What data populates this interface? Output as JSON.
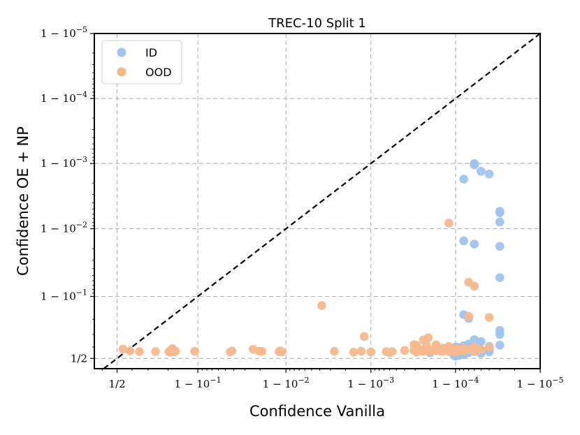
{
  "chart_data": {
    "type": "scatter",
    "title": "TREC-10 Split 1",
    "xlabel": "Confidence Vanilla",
    "ylabel": "Confidence OE + NP",
    "axis_scale": "logit (confidence near 1)",
    "xlim": [
      0.35,
      0.99999
    ],
    "ylim": [
      0.41,
      0.99999
    ],
    "x_ticks": [
      {
        "value": 0.5,
        "label": "1/2"
      },
      {
        "value": 0.9,
        "label": "1 − 10^−1"
      },
      {
        "value": 0.99,
        "label": "1 − 10^−2"
      },
      {
        "value": 0.999,
        "label": "1 − 10^−3"
      },
      {
        "value": 0.9999,
        "label": "1 − 10^−4"
      },
      {
        "value": 0.99999,
        "label": "1 − 10^−5"
      }
    ],
    "y_ticks": [
      {
        "value": 0.5,
        "label": "1/2"
      },
      {
        "value": 0.9,
        "label": "1 − 10^−1"
      },
      {
        "value": 0.99,
        "label": "1 − 10^−2"
      },
      {
        "value": 0.999,
        "label": "1 − 10^−3"
      },
      {
        "value": 0.9999,
        "label": "1 − 10^−4"
      },
      {
        "value": 0.99999,
        "label": "1 − 10^−5"
      }
    ],
    "grid": true,
    "diagonal_reference": "y = x (black dashed)",
    "legend_position": "top-left",
    "series": [
      {
        "name": "ID",
        "color": "#9fc3ee",
        "points": [
          [
            0.99994,
            0.999
          ],
          [
            0.99994,
            0.99895
          ],
          [
            0.99995,
            0.99868
          ],
          [
            0.99996,
            0.99855
          ],
          [
            0.99992,
            0.99826
          ],
          [
            0.99997,
            0.9946
          ],
          [
            0.99997,
            0.9943
          ],
          [
            0.99997,
            0.9921
          ],
          [
            0.99992,
            0.9847
          ],
          [
            0.99994,
            0.9829
          ],
          [
            0.99997,
            0.9815
          ],
          [
            0.99997,
            0.9458
          ],
          [
            0.99992,
            0.825
          ],
          [
            0.99993,
            0.805
          ],
          [
            0.99997,
            0.73
          ],
          [
            0.99997,
            0.7
          ],
          [
            0.99994,
            0.66
          ],
          [
            0.99995,
            0.645
          ],
          [
            0.99993,
            0.625
          ],
          [
            0.99992,
            0.61
          ],
          [
            0.99996,
            0.605
          ],
          [
            0.99997,
            0.615
          ],
          [
            0.99991,
            0.595
          ],
          [
            0.9999,
            0.6
          ],
          [
            0.99994,
            0.6
          ],
          [
            0.99989,
            0.59
          ],
          [
            0.99988,
            0.592
          ],
          [
            0.99992,
            0.59
          ],
          [
            0.9999,
            0.585
          ],
          [
            0.99993,
            0.587
          ],
          [
            0.99989,
            0.58
          ],
          [
            0.99991,
            0.582
          ],
          [
            0.99994,
            0.583
          ],
          [
            0.99993,
            0.58
          ],
          [
            0.99996,
            0.582
          ],
          [
            0.99991,
            0.57
          ],
          [
            0.99989,
            0.575
          ],
          [
            0.99994,
            0.572
          ],
          [
            0.99987,
            0.57
          ],
          [
            0.99992,
            0.572
          ],
          [
            0.9999,
            0.57
          ],
          [
            0.99995,
            0.57
          ],
          [
            0.99992,
            0.565
          ],
          [
            0.99988,
            0.566
          ],
          [
            0.99993,
            0.565
          ],
          [
            0.99991,
            0.56
          ],
          [
            0.99989,
            0.562
          ],
          [
            0.99994,
            0.561
          ],
          [
            0.99992,
            0.555
          ],
          [
            0.9999,
            0.555
          ],
          [
            0.99996,
            0.557
          ],
          [
            0.9999,
            0.55
          ],
          [
            0.99993,
            0.551
          ],
          [
            0.9998,
            0.55
          ],
          [
            0.9999,
            0.545
          ],
          [
            0.99995,
            0.545
          ],
          [
            0.9999,
            0.54
          ],
          [
            0.99992,
            0.54
          ],
          [
            0.999895,
            0.535
          ],
          [
            0.99992,
            0.535
          ],
          [
            0.9999,
            0.53
          ],
          [
            0.99991,
            0.528
          ],
          [
            0.9999,
            0.525
          ],
          [
            0.9999,
            0.52
          ]
        ]
      },
      {
        "name": "OOD",
        "color": "#f6b98e",
        "points": [
          [
            0.99988,
            0.9918
          ],
          [
            0.99993,
            0.937
          ],
          [
            0.99994,
            0.928
          ],
          [
            0.99993,
            0.817
          ],
          [
            0.99996,
            0.81
          ],
          [
            0.99979,
            0.675
          ],
          [
            0.99976,
            0.658
          ],
          [
            0.99969,
            0.62
          ],
          [
            0.99971,
            0.613
          ],
          [
            0.99983,
            0.618
          ],
          [
            0.99978,
            0.612
          ],
          [
            0.99983,
            0.605
          ],
          [
            0.99988,
            0.605
          ],
          [
            0.99992,
            0.59
          ],
          [
            0.99994,
            0.6
          ],
          [
            0.99996,
            0.595
          ],
          [
            0.99986,
            0.59
          ],
          [
            0.9999,
            0.585
          ],
          [
            0.99993,
            0.583
          ],
          [
            0.99984,
            0.584
          ],
          [
            0.99987,
            0.58
          ],
          [
            0.99991,
            0.578
          ],
          [
            0.99995,
            0.578
          ],
          [
            0.9998,
            0.575
          ],
          [
            0.99989,
            0.574
          ],
          [
            0.99994,
            0.574
          ],
          [
            0.99983,
            0.57
          ],
          [
            0.99978,
            0.565
          ],
          [
            0.99986,
            0.565
          ],
          [
            0.99992,
            0.565
          ],
          [
            0.99975,
            0.562
          ],
          [
            0.99994,
            0.561
          ],
          [
            0.99988,
            0.56
          ],
          [
            0.99969,
            0.57
          ],
          [
            0.99974,
            0.575
          ],
          [
            0.99976,
            0.565
          ],
          [
            0.9998,
            0.563
          ],
          [
            0.99978,
            0.57
          ],
          [
            0.99983,
            0.567
          ],
          [
            0.99991,
            0.566
          ],
          [
            0.99985,
            0.562
          ],
          [
            0.99988,
            0.563
          ],
          [
            0.99971,
            0.555
          ],
          [
            0.9999,
            0.555
          ],
          [
            0.9996,
            0.57
          ],
          [
            0.99944,
            0.56
          ],
          [
            0.99934,
            0.56
          ],
          [
            0.9994,
            0.55
          ],
          [
            0.9988,
            0.685
          ],
          [
            0.9962,
            0.867
          ],
          [
            0.9984,
            0.555
          ],
          [
            0.9987,
            0.562
          ],
          [
            0.999,
            0.556
          ],
          [
            0.9973,
            0.562
          ],
          [
            0.976,
            0.58
          ],
          [
            0.9795,
            0.563
          ],
          [
            0.981,
            0.562
          ],
          [
            0.9883,
            0.565
          ],
          [
            0.988,
            0.56
          ],
          [
            0.9888,
            0.558
          ],
          [
            0.9578,
            0.565
          ],
          [
            0.956,
            0.556
          ],
          [
            0.892,
            0.562
          ],
          [
            0.819,
            0.586
          ],
          [
            0.814,
            0.572
          ],
          [
            0.83,
            0.565
          ],
          [
            0.8255,
            0.558
          ],
          [
            0.81,
            0.556
          ],
          [
            0.804,
            0.56
          ],
          [
            0.74,
            0.56
          ],
          [
            0.647,
            0.56
          ],
          [
            0.587,
            0.566
          ],
          [
            0.54,
            0.582
          ]
        ]
      }
    ]
  },
  "legend": [
    {
      "label": "ID",
      "color": "#9fc3ee"
    },
    {
      "label": "OOD",
      "color": "#f6b98e"
    }
  ]
}
